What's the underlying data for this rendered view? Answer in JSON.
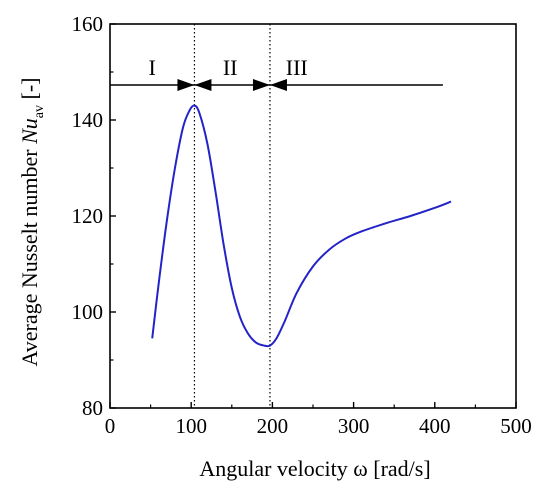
{
  "chart_data": {
    "type": "line",
    "xlabel": "Angular velocity ω  [rad/s]",
    "ylabel_parts": {
      "prefix": "Average Nusselt number ",
      "symbol": "Nu",
      "subscript": "av",
      "unit": "  [-]"
    },
    "xlim": [
      0,
      500
    ],
    "ylim": [
      80,
      160
    ],
    "x_ticks": [
      "0",
      "100",
      "200",
      "300",
      "400",
      "500"
    ],
    "y_ticks": [
      "80",
      "100",
      "120",
      "140",
      "160"
    ],
    "grid": false,
    "series": [
      {
        "color": "#2323c8",
        "x": [
          52,
          60,
          70,
          80,
          90,
          98,
          104,
          110,
          120,
          130,
          140,
          150,
          160,
          170,
          180,
          190,
          197,
          205,
          215,
          230,
          250,
          270,
          290,
          310,
          340,
          370,
          400,
          420
        ],
        "y": [
          94.5,
          106,
          119,
          130,
          138.5,
          142,
          143,
          141.5,
          135,
          125,
          114,
          105,
          99,
          95.5,
          93.6,
          93,
          93,
          94.5,
          98,
          104,
          109.5,
          113,
          115.3,
          116.8,
          118.5,
          120,
          121.7,
          123
        ]
      }
    ],
    "regions": [
      {
        "label": "I",
        "x_center": 52
      },
      {
        "label": "II",
        "x_center": 148
      },
      {
        "label": "III",
        "x_center": 230
      }
    ],
    "dividers_x": [
      104,
      197
    ],
    "arrow_line": {
      "y": 147.3,
      "x_start": 0,
      "x_end": 410
    }
  }
}
